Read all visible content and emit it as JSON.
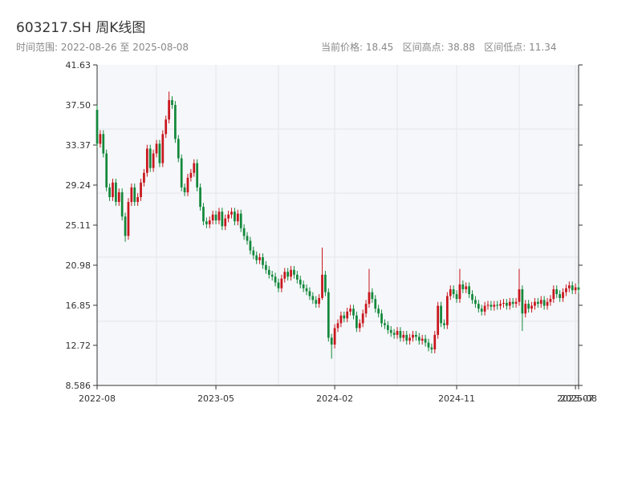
{
  "chart_data": {
    "type": "candlestick",
    "title": "603217.SH 周K线图",
    "subtitle": "时间范围: 2022-08-26 至 2025-08-08",
    "stats": "当前价格: 18.45   区间高点: 38.88   区间低点: 11.34",
    "up_color": "#c8161d",
    "down_color": "#13883b",
    "ylim": [
      8.586,
      41.63
    ],
    "yticks": [
      8.586,
      12.72,
      16.85,
      20.98,
      25.11,
      29.24,
      33.37,
      {
        "value": 37.5,
        "label": "37.50"
      },
      41.63
    ],
    "ygrid": [
      15.2,
      21.81,
      28.41,
      35.02
    ],
    "xlim": [
      0,
      154
    ],
    "xticks": [
      {
        "value": 0,
        "label": "2022-08"
      },
      {
        "value": 38,
        "label": "2023-05"
      },
      {
        "value": 76,
        "label": "2024-02"
      },
      {
        "value": 115,
        "label": "2024-11"
      },
      {
        "value": 153,
        "label": "2025-07"
      },
      {
        "value": 154,
        "label": "2025-08"
      }
    ],
    "xgrid": [
      19,
      58,
      96,
      135
    ],
    "candles": [
      [
        37.0,
        37.5,
        33.1,
        33.5
      ],
      [
        33.5,
        34.9,
        33.1,
        34.5
      ],
      [
        34.5,
        34.9,
        32.1,
        32.5
      ],
      [
        32.5,
        32.9,
        28.6,
        29.0
      ],
      [
        29.0,
        29.4,
        27.6,
        28.0
      ],
      [
        28.0,
        29.9,
        27.6,
        29.5
      ],
      [
        29.5,
        29.9,
        27.1,
        27.5
      ],
      [
        27.5,
        28.9,
        27.1,
        28.5
      ],
      [
        28.5,
        28.9,
        25.6,
        26.0
      ],
      [
        26.0,
        26.4,
        23.4,
        24.0
      ],
      [
        24.0,
        27.9,
        23.6,
        27.5
      ],
      [
        27.5,
        29.4,
        27.1,
        29.0
      ],
      [
        29.0,
        29.4,
        27.1,
        27.5
      ],
      [
        27.5,
        28.4,
        27.1,
        28.0
      ],
      [
        28.0,
        29.9,
        27.6,
        29.5
      ],
      [
        29.5,
        30.9,
        29.1,
        30.5
      ],
      [
        30.5,
        33.4,
        30.1,
        33.0
      ],
      [
        33.0,
        33.4,
        30.6,
        31.0
      ],
      [
        31.0,
        32.9,
        30.6,
        32.5
      ],
      [
        32.5,
        33.9,
        32.1,
        33.5
      ],
      [
        33.5,
        33.9,
        31.1,
        31.5
      ],
      [
        31.5,
        34.9,
        31.1,
        34.5
      ],
      [
        34.5,
        36.4,
        34.1,
        36.0
      ],
      [
        36.0,
        38.88,
        35.6,
        38.0
      ],
      [
        38.0,
        38.4,
        37.1,
        37.5
      ],
      [
        37.5,
        37.9,
        33.6,
        34.0
      ],
      [
        34.0,
        34.4,
        31.6,
        32.0
      ],
      [
        32.0,
        32.4,
        28.6,
        29.0
      ],
      [
        29.0,
        29.4,
        28.1,
        28.5
      ],
      [
        28.5,
        30.4,
        28.1,
        30.0
      ],
      [
        30.0,
        30.9,
        29.6,
        30.5
      ],
      [
        30.5,
        31.9,
        30.1,
        31.5
      ],
      [
        31.5,
        31.9,
        28.6,
        29.0
      ],
      [
        29.0,
        29.4,
        26.6,
        27.0
      ],
      [
        27.0,
        27.4,
        25.1,
        25.5
      ],
      [
        25.5,
        25.9,
        24.8,
        25.2
      ],
      [
        25.2,
        26.0,
        24.8,
        25.6
      ],
      [
        25.6,
        26.6,
        25.2,
        26.2
      ],
      [
        26.2,
        26.6,
        25.2,
        25.6
      ],
      [
        25.6,
        26.9,
        25.2,
        26.5
      ],
      [
        26.5,
        26.9,
        24.6,
        25.0
      ],
      [
        25.0,
        26.2,
        24.6,
        25.8
      ],
      [
        25.8,
        26.6,
        25.4,
        26.2
      ],
      [
        26.2,
        26.9,
        25.8,
        26.5
      ],
      [
        26.5,
        26.9,
        25.1,
        25.5
      ],
      [
        25.5,
        26.7,
        25.1,
        26.3
      ],
      [
        26.3,
        26.7,
        24.4,
        24.8
      ],
      [
        24.8,
        25.2,
        23.6,
        24.0
      ],
      [
        24.0,
        24.4,
        23.1,
        23.5
      ],
      [
        23.5,
        23.9,
        22.1,
        22.5
      ],
      [
        22.5,
        22.9,
        21.6,
        22.0
      ],
      [
        22.0,
        22.4,
        21.1,
        21.5
      ],
      [
        21.5,
        22.2,
        21.1,
        21.8
      ],
      [
        21.8,
        22.2,
        20.6,
        21.0
      ],
      [
        21.0,
        21.4,
        20.1,
        20.5
      ],
      [
        20.5,
        20.9,
        19.6,
        20.0
      ],
      [
        20.0,
        20.4,
        19.4,
        19.8
      ],
      [
        19.8,
        20.2,
        18.8,
        19.2
      ],
      [
        19.2,
        19.6,
        18.2,
        18.6
      ],
      [
        18.6,
        20.0,
        18.2,
        19.6
      ],
      [
        19.6,
        20.7,
        19.2,
        20.3
      ],
      [
        20.3,
        20.7,
        19.4,
        19.8
      ],
      [
        19.8,
        20.9,
        19.4,
        20.5
      ],
      [
        20.5,
        20.9,
        19.6,
        20.0
      ],
      [
        20.0,
        20.4,
        19.1,
        19.5
      ],
      [
        19.5,
        19.9,
        18.6,
        19.0
      ],
      [
        19.0,
        19.4,
        18.2,
        18.6
      ],
      [
        18.6,
        19.0,
        17.9,
        18.3
      ],
      [
        18.3,
        18.7,
        17.4,
        17.8
      ],
      [
        17.8,
        18.2,
        17.0,
        17.4
      ],
      [
        17.4,
        17.8,
        16.6,
        17.0
      ],
      [
        17.0,
        18.0,
        16.6,
        17.6
      ],
      [
        17.6,
        22.8,
        17.4,
        20.0
      ],
      [
        20.0,
        20.4,
        17.8,
        18.2
      ],
      [
        18.2,
        18.6,
        13.1,
        13.5
      ],
      [
        13.5,
        13.9,
        11.34,
        12.8
      ],
      [
        12.8,
        14.9,
        12.4,
        14.5
      ],
      [
        14.5,
        15.4,
        14.1,
        15.0
      ],
      [
        15.0,
        16.2,
        14.6,
        15.8
      ],
      [
        15.8,
        16.2,
        15.1,
        15.5
      ],
      [
        15.5,
        16.6,
        15.1,
        16.2
      ],
      [
        16.2,
        16.9,
        15.8,
        16.5
      ],
      [
        16.5,
        16.9,
        15.4,
        15.8
      ],
      [
        15.8,
        16.2,
        14.1,
        14.5
      ],
      [
        14.5,
        15.4,
        14.1,
        15.0
      ],
      [
        15.0,
        16.4,
        14.6,
        16.0
      ],
      [
        16.0,
        17.4,
        15.6,
        17.0
      ],
      [
        17.0,
        20.6,
        16.6,
        18.2
      ],
      [
        18.2,
        18.6,
        17.1,
        17.5
      ],
      [
        17.5,
        17.9,
        16.1,
        16.5
      ],
      [
        16.5,
        16.9,
        15.6,
        16.0
      ],
      [
        16.0,
        16.4,
        14.6,
        15.0
      ],
      [
        15.0,
        15.4,
        14.4,
        14.8
      ],
      [
        14.8,
        15.2,
        13.9,
        14.3
      ],
      [
        14.3,
        14.7,
        13.6,
        14.0
      ],
      [
        14.0,
        14.4,
        13.4,
        13.8
      ],
      [
        13.8,
        14.6,
        13.4,
        14.2
      ],
      [
        14.2,
        14.6,
        13.1,
        13.5
      ],
      [
        13.5,
        14.2,
        13.1,
        13.8
      ],
      [
        13.8,
        14.2,
        12.8,
        13.2
      ],
      [
        13.2,
        13.9,
        12.8,
        13.5
      ],
      [
        13.5,
        14.2,
        13.1,
        13.8
      ],
      [
        13.8,
        14.2,
        13.2,
        13.6
      ],
      [
        13.6,
        14.0,
        12.8,
        13.2
      ],
      [
        13.2,
        13.8,
        12.8,
        13.4
      ],
      [
        13.4,
        13.8,
        12.6,
        13.0
      ],
      [
        13.0,
        13.4,
        12.1,
        12.5
      ],
      [
        12.5,
        12.9,
        11.9,
        12.3
      ],
      [
        12.3,
        14.2,
        11.9,
        13.8
      ],
      [
        13.8,
        17.2,
        13.4,
        16.8
      ],
      [
        16.8,
        17.2,
        14.6,
        15.0
      ],
      [
        15.0,
        15.4,
        14.4,
        14.8
      ],
      [
        14.8,
        18.2,
        14.4,
        17.8
      ],
      [
        17.8,
        18.9,
        17.4,
        18.5
      ],
      [
        18.5,
        18.9,
        17.6,
        18.0
      ],
      [
        18.0,
        18.4,
        17.1,
        17.5
      ],
      [
        17.5,
        20.6,
        17.1,
        19.0
      ],
      [
        19.0,
        19.4,
        18.1,
        18.5
      ],
      [
        18.5,
        19.2,
        18.1,
        18.8
      ],
      [
        18.8,
        19.2,
        17.6,
        18.0
      ],
      [
        18.0,
        18.4,
        17.0,
        17.4
      ],
      [
        17.4,
        17.8,
        16.6,
        17.0
      ],
      [
        17.0,
        17.4,
        16.1,
        16.5
      ],
      [
        16.5,
        16.9,
        15.8,
        16.2
      ],
      [
        16.2,
        17.2,
        15.8,
        16.8
      ],
      [
        16.8,
        17.3,
        16.4,
        16.9
      ],
      [
        16.9,
        17.3,
        16.3,
        16.7
      ],
      [
        16.7,
        17.3,
        16.3,
        16.9
      ],
      [
        16.9,
        17.3,
        16.4,
        16.8
      ],
      [
        16.8,
        17.4,
        16.4,
        17.0
      ],
      [
        17.0,
        17.5,
        16.6,
        17.1
      ],
      [
        17.1,
        17.5,
        16.4,
        16.8
      ],
      [
        16.8,
        17.6,
        16.4,
        17.2
      ],
      [
        17.2,
        17.6,
        16.6,
        17.0
      ],
      [
        17.0,
        17.6,
        16.6,
        17.2
      ],
      [
        17.2,
        20.6,
        16.8,
        18.5
      ],
      [
        18.5,
        18.9,
        14.2,
        16.0
      ],
      [
        16.0,
        17.4,
        15.6,
        17.0
      ],
      [
        17.0,
        17.4,
        16.1,
        16.5
      ],
      [
        16.5,
        17.2,
        16.1,
        16.8
      ],
      [
        16.8,
        17.6,
        16.4,
        17.2
      ],
      [
        17.2,
        17.6,
        16.6,
        17.0
      ],
      [
        17.0,
        17.8,
        16.6,
        17.4
      ],
      [
        17.4,
        17.8,
        16.4,
        16.8
      ],
      [
        16.8,
        17.6,
        16.4,
        17.2
      ],
      [
        17.2,
        17.9,
        16.8,
        17.5
      ],
      [
        17.5,
        18.9,
        17.1,
        18.5
      ],
      [
        18.5,
        18.9,
        17.6,
        18.0
      ],
      [
        18.0,
        18.4,
        17.2,
        17.6
      ],
      [
        17.6,
        18.6,
        17.2,
        18.2
      ],
      [
        18.2,
        19.0,
        17.8,
        18.6
      ],
      [
        18.6,
        19.3,
        18.2,
        18.9
      ],
      [
        18.9,
        19.3,
        18.0,
        18.4
      ],
      [
        18.4,
        19.1,
        18.0,
        18.7
      ],
      [
        18.7,
        19.1,
        18.1,
        18.45
      ]
    ]
  }
}
